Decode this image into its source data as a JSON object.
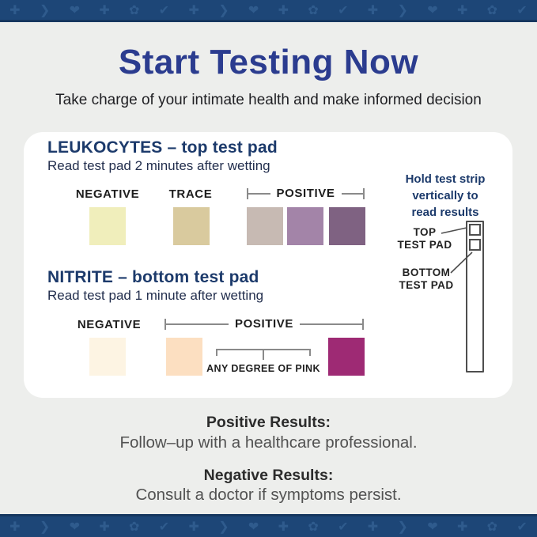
{
  "header": {
    "title": "Start Testing Now",
    "subtitle": "Take charge of your intimate health and make informed decision"
  },
  "colors": {
    "background": "#edeeec",
    "band": "#1d4677",
    "band_pattern": "#2f5b8d",
    "card": "#ffffff",
    "title": "#2b3c8f",
    "section_heading": "#1c3a6b"
  },
  "leukocytes": {
    "heading": "LEUKOCYTES – top test pad",
    "instruction": "Read test pad 2 minutes after wetting",
    "negative_label": "NEGATIVE",
    "trace_label": "TRACE",
    "positive_label": "POSITIVE",
    "swatches": [
      {
        "name": "negative",
        "color": "#f0eebb"
      },
      {
        "name": "trace",
        "color": "#d9ca9e"
      },
      {
        "name": "positive-light",
        "color": "#c7bab3"
      },
      {
        "name": "positive-medium",
        "color": "#a384a8"
      },
      {
        "name": "positive-dark",
        "color": "#7f6282"
      }
    ]
  },
  "nitrite": {
    "heading": "NITRITE – bottom test pad",
    "instruction": "Read test pad 1 minute after wetting",
    "negative_label": "NEGATIVE",
    "positive_label": "POSITIVE",
    "pink_note": "ANY DEGREE OF PINK",
    "swatches": [
      {
        "name": "negative",
        "color": "#fdf4e3"
      },
      {
        "name": "positive-light",
        "color": "#fcdfc1"
      },
      {
        "name": "positive-dark",
        "color": "#9e2a74"
      }
    ]
  },
  "strip_guide": {
    "caption_line1": "Hold test strip",
    "caption_line2": "vertically to",
    "caption_line3": "read results",
    "top_pad_line1": "TOP",
    "top_pad_line2": "TEST PAD",
    "bottom_pad_line1": "BOTTOM",
    "bottom_pad_line2": "TEST PAD"
  },
  "results": {
    "positive_heading": "Positive Results:",
    "positive_body": "Follow–up with a healthcare professional.",
    "negative_heading": "Negative Results:",
    "negative_body": "Consult a doctor if symptoms persist."
  },
  "decorations": {
    "pattern_glyphs": [
      "✚",
      "❯",
      "❤",
      "✚",
      "✿",
      "✔"
    ]
  }
}
